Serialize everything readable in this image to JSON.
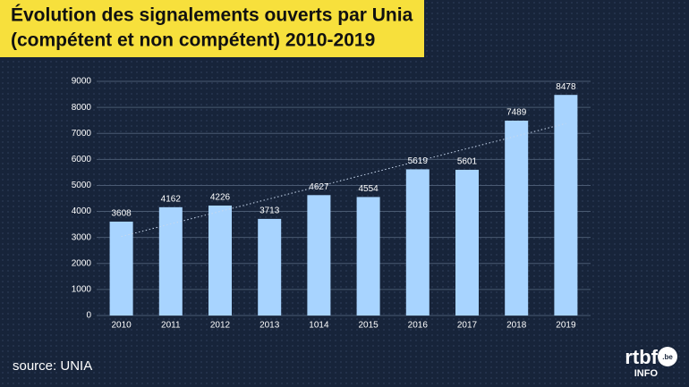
{
  "chart_data": {
    "type": "bar",
    "title": [
      "Évolution des signalements ouverts par Unia",
      "(compétent et non compétent) 2010-2019"
    ],
    "categories": [
      "2010",
      "2011",
      "2012",
      "2013",
      "1014",
      "2015",
      "2016",
      "2017",
      "2018",
      "2019"
    ],
    "values": [
      3608,
      4162,
      4226,
      3713,
      4627,
      4554,
      5619,
      5601,
      7489,
      8478
    ],
    "color": "#a8d4ff",
    "ylim": [
      0,
      9000
    ],
    "yticks": [
      0,
      1000,
      2000,
      3000,
      4000,
      5000,
      6000,
      7000,
      8000,
      9000
    ],
    "grid": true,
    "trendline": true,
    "source": "source: UNIA",
    "logo": {
      "name": "rtbf",
      "suffix": ".be",
      "sub": "INFO"
    }
  }
}
